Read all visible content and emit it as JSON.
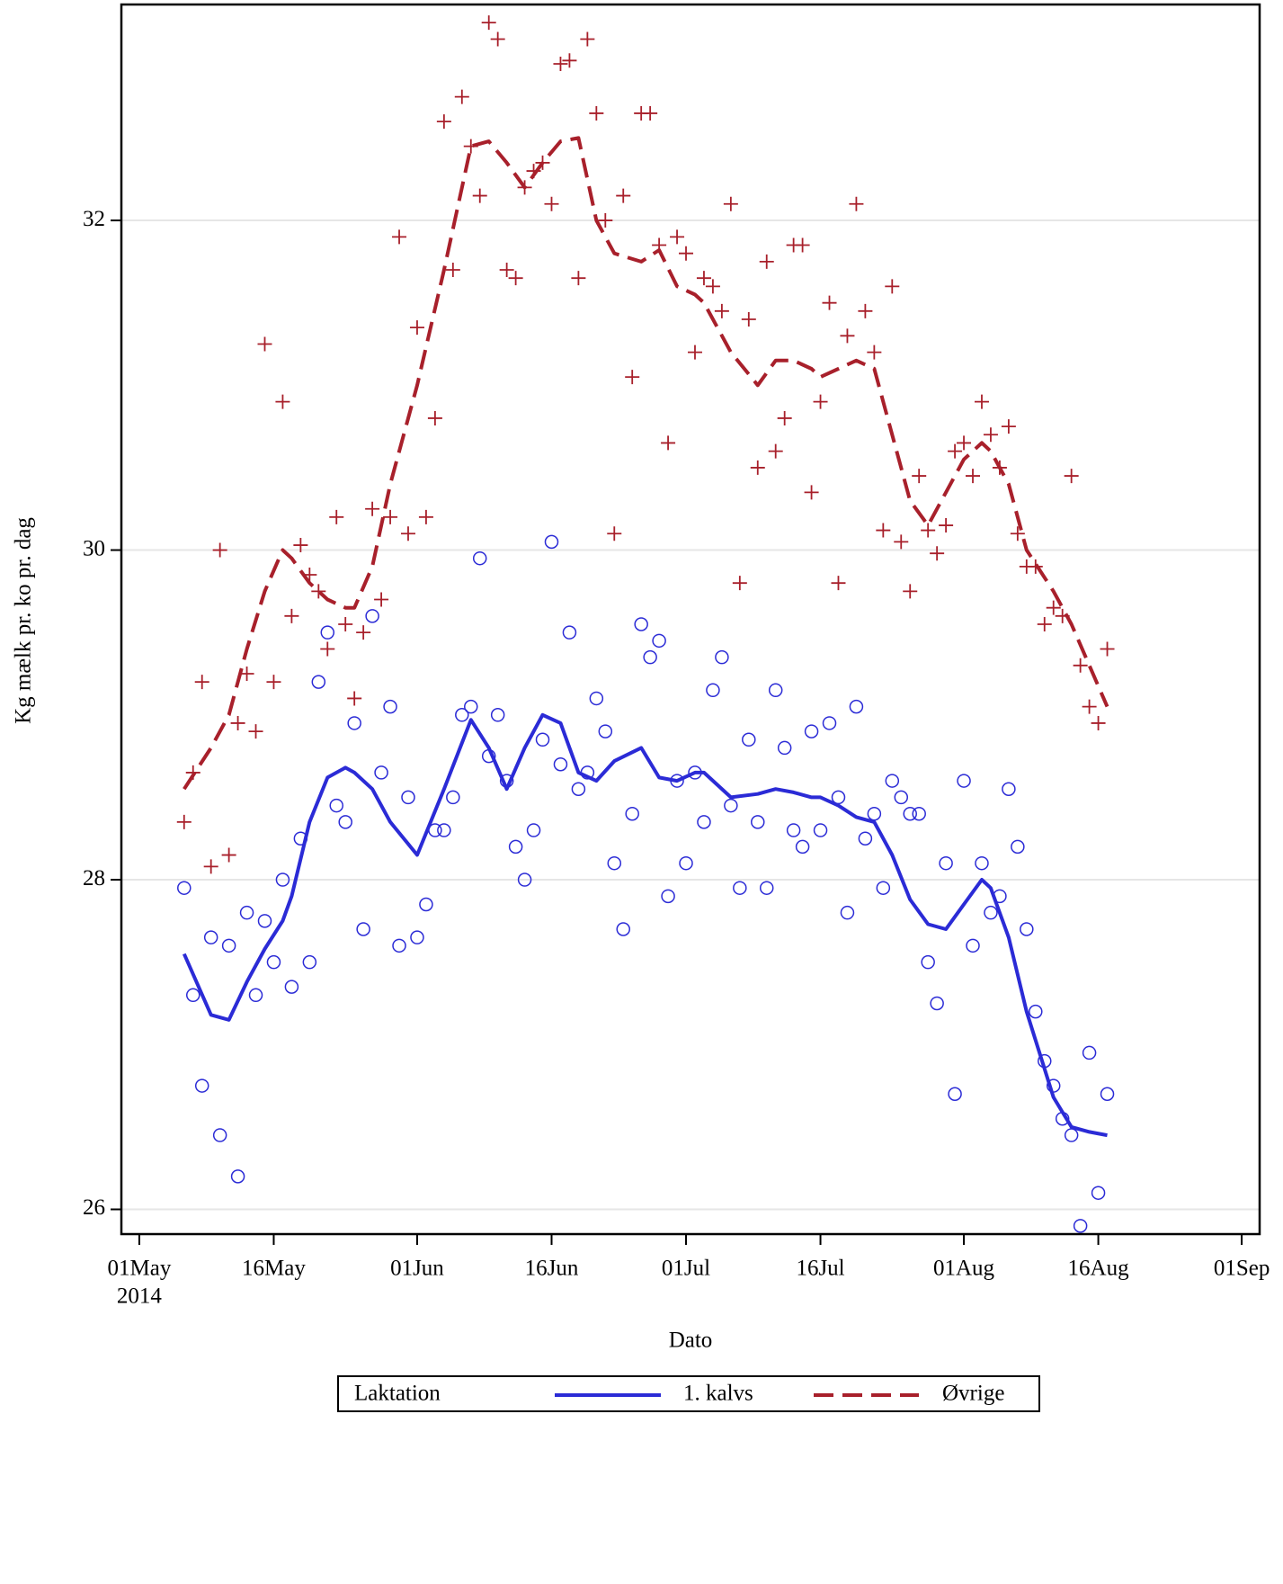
{
  "chart_data": {
    "type": "scatter",
    "x_label": "Dato",
    "y_label": "Kg mælk pr. ko pr. dag",
    "xlim": [
      "2014-04-29",
      "2014-09-03"
    ],
    "xticks": [
      {
        "value": "2014-05-01",
        "label": "01May"
      },
      {
        "value": "2014-05-16",
        "label": "16May"
      },
      {
        "value": "2014-06-01",
        "label": "01Jun"
      },
      {
        "value": "2014-06-16",
        "label": "16Jun"
      },
      {
        "value": "2014-07-01",
        "label": "01Jul"
      },
      {
        "value": "2014-07-16",
        "label": "16Jul"
      },
      {
        "value": "2014-08-01",
        "label": "01Aug"
      },
      {
        "value": "2014-08-16",
        "label": "16Aug"
      },
      {
        "value": "2014-09-01",
        "label": "01Sep"
      }
    ],
    "x_year_label": "2014",
    "ylim": [
      25.85,
      33.31
    ],
    "yticks": [
      26,
      28,
      30,
      32
    ],
    "grid": true,
    "legend_title": "Laktation",
    "x": [
      "2014-05-06",
      "2014-05-07",
      "2014-05-08",
      "2014-05-09",
      "2014-05-10",
      "2014-05-11",
      "2014-05-12",
      "2014-05-13",
      "2014-05-14",
      "2014-05-15",
      "2014-05-16",
      "2014-05-17",
      "2014-05-18",
      "2014-05-19",
      "2014-05-20",
      "2014-05-21",
      "2014-05-22",
      "2014-05-23",
      "2014-05-24",
      "2014-05-25",
      "2014-05-26",
      "2014-05-27",
      "2014-05-28",
      "2014-05-29",
      "2014-05-30",
      "2014-05-31",
      "2014-06-01",
      "2014-06-02",
      "2014-06-03",
      "2014-06-04",
      "2014-06-05",
      "2014-06-06",
      "2014-06-07",
      "2014-06-08",
      "2014-06-09",
      "2014-06-10",
      "2014-06-11",
      "2014-06-12",
      "2014-06-13",
      "2014-06-14",
      "2014-06-15",
      "2014-06-16",
      "2014-06-17",
      "2014-06-18",
      "2014-06-19",
      "2014-06-20",
      "2014-06-21",
      "2014-06-22",
      "2014-06-23",
      "2014-06-24",
      "2014-06-25",
      "2014-06-26",
      "2014-06-27",
      "2014-06-28",
      "2014-06-29",
      "2014-06-30",
      "2014-07-01",
      "2014-07-02",
      "2014-07-03",
      "2014-07-04",
      "2014-07-05",
      "2014-07-06",
      "2014-07-07",
      "2014-07-08",
      "2014-07-09",
      "2014-07-10",
      "2014-07-11",
      "2014-07-12",
      "2014-07-13",
      "2014-07-14",
      "2014-07-15",
      "2014-07-16",
      "2014-07-17",
      "2014-07-18",
      "2014-07-19",
      "2014-07-20",
      "2014-07-21",
      "2014-07-22",
      "2014-07-23",
      "2014-07-24",
      "2014-07-25",
      "2014-07-26",
      "2014-07-27",
      "2014-07-28",
      "2014-07-29",
      "2014-07-30",
      "2014-07-31",
      "2014-08-01",
      "2014-08-02",
      "2014-08-03",
      "2014-08-04",
      "2014-08-05",
      "2014-08-06",
      "2014-08-07",
      "2014-08-08",
      "2014-08-09",
      "2014-08-10",
      "2014-08-11",
      "2014-08-12",
      "2014-08-13",
      "2014-08-14",
      "2014-08-15",
      "2014-08-16",
      "2014-08-17"
    ],
    "smooth_x": [
      "2014-05-06",
      "2014-05-09",
      "2014-05-11",
      "2014-05-13",
      "2014-05-15",
      "2014-05-17",
      "2014-05-18",
      "2014-05-20",
      "2014-05-22",
      "2014-05-24",
      "2014-05-25",
      "2014-05-27",
      "2014-05-29",
      "2014-06-01",
      "2014-06-04",
      "2014-06-07",
      "2014-06-09",
      "2014-06-11",
      "2014-06-13",
      "2014-06-15",
      "2014-06-17",
      "2014-06-19",
      "2014-06-21",
      "2014-06-23",
      "2014-06-26",
      "2014-06-28",
      "2014-06-30",
      "2014-07-02",
      "2014-07-03",
      "2014-07-06",
      "2014-07-09",
      "2014-07-11",
      "2014-07-13",
      "2014-07-15",
      "2014-07-16",
      "2014-07-18",
      "2014-07-20",
      "2014-07-22",
      "2014-07-24",
      "2014-07-26",
      "2014-07-28",
      "2014-07-30",
      "2014-08-01",
      "2014-08-03",
      "2014-08-04",
      "2014-08-06",
      "2014-08-08",
      "2014-08-11",
      "2014-08-13",
      "2014-08-15",
      "2014-08-17"
    ],
    "series": [
      {
        "name": "1. kalvs",
        "color": "#2b2bd6",
        "marker": "circle",
        "dashed": false,
        "values": [
          27.95,
          27.3,
          26.75,
          27.65,
          26.45,
          27.6,
          26.2,
          27.8,
          27.3,
          27.75,
          27.5,
          28.0,
          27.35,
          28.25,
          27.5,
          29.2,
          29.5,
          28.45,
          28.35,
          28.95,
          27.7,
          29.6,
          28.65,
          29.05,
          27.6,
          28.5,
          27.65,
          27.85,
          28.3,
          28.3,
          28.5,
          29.0,
          29.05,
          29.95,
          28.75,
          29.0,
          28.6,
          28.2,
          28.0,
          28.3,
          28.85,
          30.05,
          28.7,
          29.5,
          28.55,
          28.65,
          29.1,
          28.9,
          28.1,
          27.7,
          28.4,
          29.55,
          29.35,
          29.45,
          27.9,
          28.6,
          28.1,
          28.65,
          28.35,
          29.15,
          29.35,
          28.45,
          27.95,
          28.85,
          28.35,
          27.95,
          29.15,
          28.8,
          28.3,
          28.2,
          28.9,
          28.3,
          28.95,
          28.5,
          27.8,
          29.05,
          28.25,
          28.4,
          27.95,
          28.6,
          28.5,
          28.4,
          28.4,
          27.5,
          27.25,
          28.1,
          26.7,
          28.6,
          27.6,
          28.1,
          27.8,
          27.9,
          28.55,
          28.2,
          27.7,
          27.2,
          26.9,
          26.75,
          26.55,
          26.45,
          25.9,
          26.95,
          26.1,
          26.7
        ],
        "smooth_values": [
          27.55,
          27.18,
          27.15,
          27.38,
          27.58,
          27.75,
          27.9,
          28.35,
          28.62,
          28.68,
          28.65,
          28.55,
          28.35,
          28.15,
          28.55,
          28.97,
          28.8,
          28.55,
          28.8,
          29.0,
          28.95,
          28.65,
          28.6,
          28.72,
          28.8,
          28.62,
          28.6,
          28.65,
          28.65,
          28.5,
          28.52,
          28.55,
          28.53,
          28.5,
          28.5,
          28.45,
          28.38,
          28.35,
          28.15,
          27.88,
          27.73,
          27.7,
          27.85,
          28.0,
          27.95,
          27.65,
          27.2,
          26.68,
          26.5,
          26.47,
          26.45
        ]
      },
      {
        "name": "Øvrige",
        "color": "#a8202b",
        "marker": "plus",
        "dashed": true,
        "values": [
          28.35,
          28.65,
          29.2,
          28.08,
          30.0,
          28.15,
          28.95,
          29.25,
          28.9,
          31.25,
          29.2,
          30.9,
          29.6,
          30.03,
          29.85,
          29.75,
          29.4,
          30.2,
          29.55,
          29.1,
          29.5,
          30.25,
          29.7,
          30.2,
          31.9,
          30.1,
          31.35,
          30.2,
          30.8,
          32.6,
          31.7,
          32.75,
          32.45,
          32.15,
          33.2,
          33.1,
          31.7,
          31.65,
          32.2,
          32.3,
          32.35,
          32.1,
          32.95,
          32.97,
          31.65,
          33.1,
          32.65,
          32.0,
          30.1,
          32.15,
          31.05,
          32.65,
          32.65,
          31.85,
          30.65,
          31.9,
          31.8,
          31.2,
          31.65,
          31.6,
          31.45,
          32.1,
          29.8,
          31.4,
          30.5,
          31.75,
          30.6,
          30.8,
          31.85,
          31.85,
          30.35,
          30.9,
          31.5,
          29.8,
          31.3,
          32.1,
          31.45,
          31.2,
          30.12,
          31.6,
          30.05,
          29.75,
          30.45,
          30.12,
          29.98,
          30.15,
          30.6,
          30.65,
          30.45,
          30.9,
          30.7,
          30.5,
          30.75,
          30.1,
          29.9,
          29.9,
          29.55,
          29.65,
          29.6,
          30.45,
          29.3,
          29.05,
          28.95,
          29.4
        ],
        "smooth_values": [
          28.55,
          28.8,
          29.0,
          29.4,
          29.75,
          30.0,
          29.95,
          29.8,
          29.7,
          29.65,
          29.65,
          29.9,
          30.4,
          31.0,
          31.7,
          32.45,
          32.48,
          32.35,
          32.2,
          32.35,
          32.48,
          32.5,
          32.0,
          31.8,
          31.75,
          31.82,
          31.6,
          31.55,
          31.5,
          31.2,
          31.0,
          31.15,
          31.15,
          31.1,
          31.05,
          31.1,
          31.15,
          31.1,
          30.7,
          30.3,
          30.15,
          30.35,
          30.55,
          30.65,
          30.6,
          30.4,
          30.0,
          29.75,
          29.55,
          29.3,
          29.05
        ]
      }
    ]
  }
}
